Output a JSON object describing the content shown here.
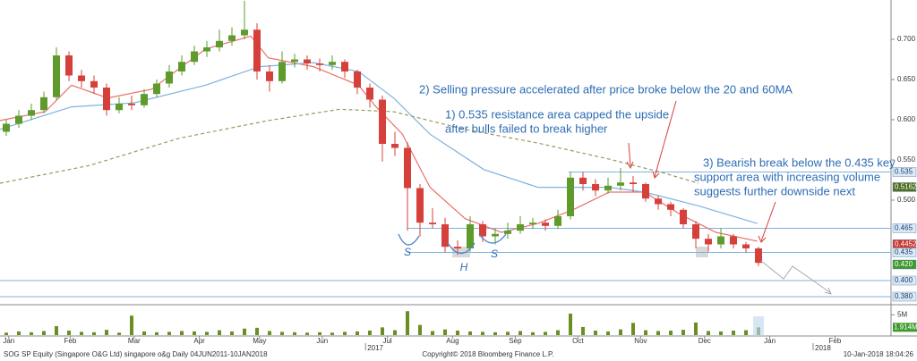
{
  "chart_data": {
    "type": "candlestick",
    "xlim": [
      -0.5,
      70.57
    ],
    "xticks": [
      {
        "value": 0.2,
        "label": "Jan"
      },
      {
        "value": 5.1,
        "label": "Feb"
      },
      {
        "value": 10.2,
        "label": "Mar"
      },
      {
        "value": 15.4,
        "label": "Apr"
      },
      {
        "value": 20.2,
        "label": "May"
      },
      {
        "value": 25.2,
        "label": "Jun"
      },
      {
        "value": 30.4,
        "label": "Jul"
      },
      {
        "value": 35.6,
        "label": "Aug"
      },
      {
        "value": 40.6,
        "label": "Sep"
      },
      {
        "value": 45.6,
        "label": "Oct"
      },
      {
        "value": 50.6,
        "label": "Nov"
      },
      {
        "value": 55.7,
        "label": "Dec"
      },
      {
        "value": 60.9,
        "label": "Jan"
      },
      {
        "value": 66.1,
        "label": "Feb"
      }
    ],
    "years": [
      {
        "value": 28.8,
        "label": "2017"
      },
      {
        "value": 64.5,
        "label": "2018"
      }
    ],
    "ylim": [
      0.3711,
      0.7489
    ],
    "yticks": [
      {
        "value": 0.7,
        "label": "0.700"
      },
      {
        "value": 0.65,
        "label": "0.650"
      },
      {
        "value": 0.6,
        "label": "0.600"
      },
      {
        "value": 0.55,
        "label": "0.550"
      },
      {
        "value": 0.5,
        "label": "0.500"
      }
    ],
    "up_color": "#5e9a2c",
    "down_color": "#d6403a",
    "candles": {
      "open": [
        0.585,
        0.595,
        0.605,
        0.612,
        0.628,
        0.68,
        0.655,
        0.648,
        0.64,
        0.612,
        0.62,
        0.618,
        0.632,
        0.645,
        0.66,
        0.672,
        0.685,
        0.69,
        0.698,
        0.705,
        0.712,
        0.66,
        0.648,
        0.672,
        0.675,
        0.67,
        0.668,
        0.672,
        0.66,
        0.64,
        0.625,
        0.57,
        0.565,
        0.515,
        0.472,
        0.47,
        0.442,
        0.44,
        0.47,
        0.455,
        0.458,
        0.462,
        0.47,
        0.472,
        0.468,
        0.48,
        0.528,
        0.52,
        0.512,
        0.518,
        0.522,
        0.52,
        0.502,
        0.495,
        0.488,
        0.47,
        0.452,
        0.445,
        0.455,
        0.445,
        0.44
      ],
      "high": [
        0.6,
        0.612,
        0.62,
        0.635,
        0.69,
        0.685,
        0.662,
        0.655,
        0.645,
        0.628,
        0.63,
        0.638,
        0.65,
        0.668,
        0.68,
        0.692,
        0.698,
        0.712,
        0.715,
        0.748,
        0.72,
        0.668,
        0.685,
        0.682,
        0.68,
        0.676,
        0.68,
        0.675,
        0.662,
        0.645,
        0.63,
        0.585,
        0.572,
        0.52,
        0.49,
        0.478,
        0.45,
        0.48,
        0.474,
        0.465,
        0.472,
        0.48,
        0.478,
        0.476,
        0.488,
        0.535,
        0.535,
        0.526,
        0.528,
        0.54,
        0.53,
        0.522,
        0.506,
        0.498,
        0.49,
        0.474,
        0.458,
        0.465,
        0.458,
        0.448,
        0.442
      ],
      "low": [
        0.58,
        0.59,
        0.6,
        0.608,
        0.625,
        0.648,
        0.64,
        0.632,
        0.605,
        0.608,
        0.612,
        0.615,
        0.628,
        0.64,
        0.655,
        0.668,
        0.678,
        0.685,
        0.692,
        0.7,
        0.65,
        0.635,
        0.645,
        0.665,
        0.662,
        0.66,
        0.662,
        0.652,
        0.632,
        0.615,
        0.548,
        0.555,
        0.462,
        0.455,
        0.465,
        0.435,
        0.432,
        0.436,
        0.448,
        0.445,
        0.452,
        0.458,
        0.464,
        0.462,
        0.464,
        0.476,
        0.512,
        0.505,
        0.508,
        0.512,
        0.51,
        0.498,
        0.488,
        0.48,
        0.465,
        0.44,
        0.436,
        0.44,
        0.44,
        0.435,
        0.418
      ],
      "close": [
        0.595,
        0.605,
        0.612,
        0.628,
        0.68,
        0.655,
        0.648,
        0.64,
        0.612,
        0.62,
        0.618,
        0.632,
        0.645,
        0.66,
        0.672,
        0.685,
        0.69,
        0.698,
        0.705,
        0.712,
        0.66,
        0.648,
        0.672,
        0.675,
        0.67,
        0.668,
        0.672,
        0.66,
        0.64,
        0.625,
        0.57,
        0.565,
        0.515,
        0.472,
        0.47,
        0.442,
        0.44,
        0.47,
        0.455,
        0.458,
        0.462,
        0.47,
        0.472,
        0.468,
        0.48,
        0.528,
        0.52,
        0.512,
        0.518,
        0.522,
        0.52,
        0.502,
        0.495,
        0.488,
        0.47,
        0.452,
        0.445,
        0.455,
        0.445,
        0.44,
        0.422
      ]
    },
    "moving_averages": [
      {
        "color": "#e8706a",
        "dashed": false,
        "x": [
          -0.5,
          3.1,
          5.2,
          8.1,
          11.6,
          15.9,
          19.5,
          20.9,
          24.5,
          28.1,
          29.5,
          31.6,
          33.8,
          36.6,
          39.5,
          42.4,
          45.2,
          48.1,
          50.9,
          53.8,
          56.6,
          59.9
        ],
        "values": [
          0.599,
          0.61,
          0.643,
          0.627,
          0.638,
          0.688,
          0.704,
          0.677,
          0.666,
          0.643,
          0.616,
          0.582,
          0.516,
          0.477,
          0.46,
          0.471,
          0.488,
          0.51,
          0.51,
          0.482,
          0.46,
          0.449
        ]
      },
      {
        "color": "#7fb2e0",
        "dashed": false,
        "x": [
          -0.5,
          5.2,
          10.2,
          15.9,
          20.2,
          24.5,
          28.1,
          30.9,
          33.8,
          38.1,
          42.4,
          48.1,
          50.9,
          55.2,
          59.9
        ],
        "values": [
          0.588,
          0.616,
          0.621,
          0.643,
          0.666,
          0.671,
          0.66,
          0.627,
          0.582,
          0.538,
          0.516,
          0.516,
          0.51,
          0.493,
          0.471
        ]
      },
      {
        "color": "#9a9a5a",
        "dashed": true,
        "x": [
          -0.5,
          6.6,
          13.8,
          20.9,
          26.6,
          30.9,
          36.6,
          42.4,
          48.1,
          52.4,
          55.2
        ],
        "values": [
          0.521,
          0.543,
          0.577,
          0.599,
          0.613,
          0.61,
          0.588,
          0.571,
          0.551,
          0.534,
          0.521
        ]
      }
    ],
    "levels": [
      {
        "value": 0.535,
        "label": "0.535",
        "color": "#dbe9f7",
        "text_color": "#1a3f6b",
        "line": true
      },
      {
        "value": 0.5162,
        "label": "0.5162",
        "color": "#4f6e1f",
        "text_color": "#ffffff",
        "line": false
      },
      {
        "value": 0.465,
        "label": "0.465",
        "color": "#dbe9f7",
        "text_color": "#1a3f6b",
        "line": true
      },
      {
        "value": 0.4452,
        "label": "0.4452",
        "color": "#c9352f",
        "text_color": "#ffffff",
        "line": false
      },
      {
        "value": 0.435,
        "label": "0.435",
        "color": "#dbe9f7",
        "text_color": "#1a3f6b",
        "line": true
      },
      {
        "value": 0.42,
        "label": "0.420",
        "color": "#3f9a2e",
        "text_color": "#ffffff",
        "line": false
      },
      {
        "value": 0.4,
        "label": "0.400",
        "color": "#dbe9f7",
        "text_color": "#1a3f6b",
        "line": true
      },
      {
        "value": 0.38,
        "label": "0.380",
        "color": "#dbe9f7",
        "text_color": "#1a3f6b",
        "line": true
      }
    ],
    "volume": {
      "color": "#6b8e23",
      "ylim": [
        0,
        7.27
      ],
      "yticks": [
        {
          "value": 5,
          "label": "5M"
        }
      ],
      "values": [
        0.6,
        0.9,
        0.7,
        1.0,
        2.2,
        1.1,
        0.8,
        0.7,
        1.3,
        0.6,
        4.8,
        0.9,
        0.7,
        0.8,
        1.0,
        0.9,
        0.8,
        1.2,
        0.9,
        1.6,
        1.8,
        1.0,
        0.8,
        0.7,
        0.6,
        0.7,
        0.6,
        0.8,
        0.9,
        1.1,
        1.9,
        1.2,
        5.9,
        2.5,
        1.0,
        1.4,
        1.1,
        0.9,
        0.8,
        0.7,
        0.8,
        1.0,
        0.7,
        0.8,
        1.2,
        5.3,
        2.0,
        1.1,
        0.9,
        1.4,
        3.0,
        1.2,
        1.0,
        1.1,
        1.3,
        3.1,
        1.0,
        0.9,
        1.1,
        1.2,
        1.914
      ],
      "value_labels": {
        "60": "1.914M"
      }
    },
    "annotations": [
      "2) Selling pressure accelerated after price broke below the 20 and 60MA",
      "1) 0.535 resistance area capped the upside",
      "after bulls failed to break higher",
      "3) Bearish break below the 0.435 key",
      "support area with increasing volume",
      "suggests further downside next"
    ],
    "pattern_labels": [
      "S",
      "H",
      "S"
    ],
    "footer": {
      "left": "SOG SP Equity (Singapore O&G Ltd) singapore o&g  Daily 04JUN2011-10JAN2018",
      "center": "Copyright© 2018 Bloomberg Finance L.P.",
      "right": "10-Jan-2018 18:04:26"
    }
  }
}
